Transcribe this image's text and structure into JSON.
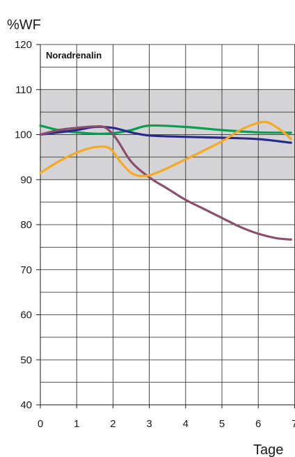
{
  "chart_data": {
    "type": "line",
    "title": "Noradrenalin",
    "ylabel": "%WF",
    "xlabel": "Tage",
    "xlim": [
      0,
      7
    ],
    "ylim": [
      40,
      120
    ],
    "x_ticks": [
      0,
      1,
      2,
      3,
      4,
      5,
      6,
      7
    ],
    "y_ticks": [
      40,
      50,
      60,
      70,
      80,
      90,
      100,
      110,
      120
    ],
    "grid": true,
    "reference_band": {
      "from": 90,
      "to": 110,
      "color": "#d4d4d6"
    },
    "series": [
      {
        "color": "#00a04f",
        "points": [
          [
            0,
            102
          ],
          [
            0.5,
            101
          ],
          [
            1,
            100.5
          ],
          [
            1.5,
            100.2
          ],
          [
            2,
            100.3
          ],
          [
            2.5,
            101
          ],
          [
            3,
            102
          ],
          [
            4,
            101.7
          ],
          [
            5,
            101
          ],
          [
            6,
            100.5
          ],
          [
            6.9,
            100.4
          ]
        ]
      },
      {
        "color": "#2a2a8c",
        "points": [
          [
            0,
            100
          ],
          [
            0.5,
            100.5
          ],
          [
            1,
            101
          ],
          [
            1.5,
            101.7
          ],
          [
            2,
            101.5
          ],
          [
            2.5,
            100.5
          ],
          [
            3,
            99.8
          ],
          [
            4,
            99.5
          ],
          [
            5,
            99.3
          ],
          [
            6,
            99
          ],
          [
            6.9,
            98.2
          ]
        ]
      },
      {
        "color": "#8a4e6e",
        "points": [
          [
            0,
            100
          ],
          [
            0.5,
            101
          ],
          [
            1,
            101.5
          ],
          [
            1.5,
            101.8
          ],
          [
            1.8,
            101.5
          ],
          [
            2.1,
            99
          ],
          [
            2.5,
            94
          ],
          [
            3,
            90.5
          ],
          [
            3.5,
            88
          ],
          [
            4,
            85.5
          ],
          [
            4.5,
            83.5
          ],
          [
            5,
            81.5
          ],
          [
            5.5,
            79.5
          ],
          [
            6,
            78
          ],
          [
            6.5,
            77
          ],
          [
            6.9,
            76.7
          ]
        ]
      },
      {
        "color": "#f7a823",
        "points": [
          [
            0,
            91.5
          ],
          [
            0.5,
            94
          ],
          [
            1,
            96
          ],
          [
            1.5,
            97.2
          ],
          [
            1.9,
            97
          ],
          [
            2.2,
            94
          ],
          [
            2.5,
            91.5
          ],
          [
            2.8,
            90.8
          ],
          [
            3.2,
            91.5
          ],
          [
            4,
            94.5
          ],
          [
            5,
            98.5
          ],
          [
            5.5,
            101
          ],
          [
            6,
            102.6
          ],
          [
            6.3,
            102.6
          ],
          [
            6.7,
            100.5
          ],
          [
            6.9,
            99
          ]
        ]
      }
    ]
  }
}
